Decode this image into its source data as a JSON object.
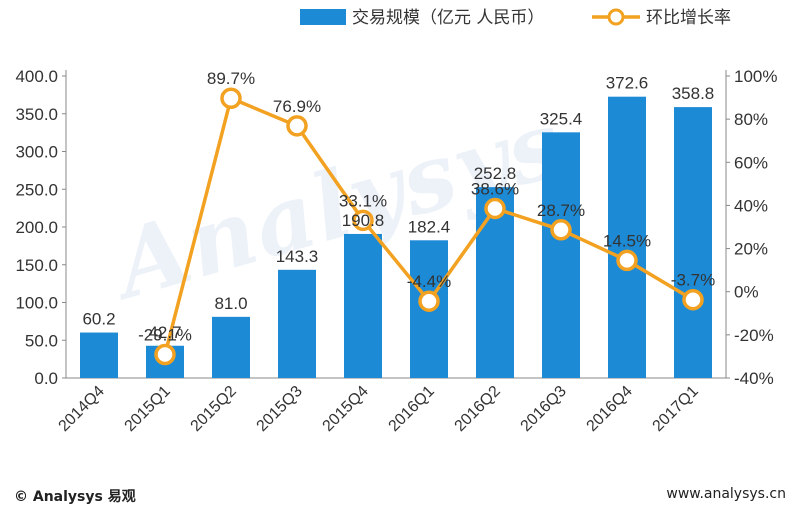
{
  "chart_data": {
    "type": "bar",
    "categories": [
      "2014Q4",
      "2015Q1",
      "2015Q2",
      "2015Q3",
      "2015Q4",
      "2016Q1",
      "2016Q2",
      "2016Q3",
      "2016Q4",
      "2017Q1"
    ],
    "series": [
      {
        "name": "交易规模（亿元 人民币）",
        "type": "bar",
        "values": [
          60.2,
          42.7,
          81.0,
          143.3,
          190.8,
          182.4,
          252.8,
          325.4,
          372.6,
          358.8
        ],
        "labels": [
          "60.2",
          "42.7",
          "81.0",
          "143.3",
          "190.8",
          "182.4",
          "252.8",
          "325.4",
          "372.6",
          "358.8"
        ]
      },
      {
        "name": "环比增长率",
        "type": "line",
        "axis": "right",
        "values": [
          null,
          -29.1,
          89.7,
          76.9,
          33.1,
          -4.4,
          38.6,
          28.7,
          14.5,
          -3.7
        ],
        "labels": [
          "",
          "-29.1%",
          "89.7%",
          "76.9%",
          "33.1%",
          "-4.4%",
          "38.6%",
          "28.7%",
          "14.5%",
          "-3.7%"
        ]
      }
    ],
    "y_left": {
      "ylim": [
        0,
        400
      ],
      "ticks": [
        "0.0",
        "50.0",
        "100.0",
        "150.0",
        "200.0",
        "250.0",
        "300.0",
        "350.0",
        "400.0"
      ]
    },
    "y_right": {
      "ylim": [
        -40,
        100
      ],
      "ticks": [
        "-40%",
        "-20%",
        "0%",
        "20%",
        "40%",
        "60%",
        "80%",
        "100%"
      ]
    },
    "legend_position": "top",
    "grid": false,
    "colors": {
      "bar": "#1d8ad6",
      "line": "#f2a121",
      "marker_fill": "#ffffff"
    }
  },
  "watermark": "Analysys 易观",
  "footer": {
    "left": "© Analysys 易观",
    "right": "www.analysys.cn"
  }
}
